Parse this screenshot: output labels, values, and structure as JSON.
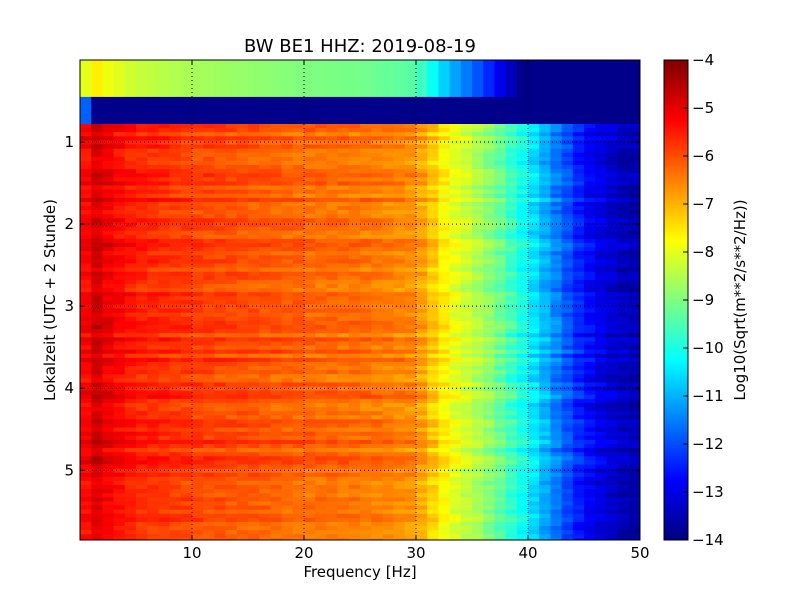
{
  "chart_data": {
    "type": "heatmap",
    "title": "BW BE1 HHZ: 2019-08-19",
    "xlabel": "Frequency [Hz]",
    "ylabel": "Lokalzeit (UTC + 2 Stunde)",
    "xlim": [
      0,
      50
    ],
    "ylim": [
      5.85,
      0.0
    ],
    "x_ticks": [
      10,
      20,
      30,
      40,
      50
    ],
    "y_ticks": [
      1,
      2,
      3,
      4,
      5
    ],
    "grid": true,
    "colormap": "jet",
    "colorbar": {
      "label": "Log10(Sqrt(m**2/s**2/Hz))",
      "range": [
        -14,
        -4
      ],
      "ticks": [
        -4,
        -5,
        -6,
        -7,
        -8,
        -9,
        -10,
        -11,
        -12,
        -13,
        -14
      ]
    },
    "data_profile": {
      "frequency_hz": [
        0,
        0.5,
        1,
        2,
        5,
        10,
        15,
        20,
        25,
        30,
        33,
        36,
        40,
        42,
        45,
        48,
        50
      ],
      "log10_amplitude": [
        -7.5,
        -5.2,
        -4.6,
        -5.0,
        -5.5,
        -5.8,
        -6.0,
        -6.2,
        -6.3,
        -6.6,
        -7.8,
        -8.6,
        -10.2,
        -11.2,
        -12.6,
        -13.3,
        -13.5
      ]
    },
    "segments": [
      {
        "time_start": 0.0,
        "time_end": 0.45,
        "description_level": "low"
      },
      {
        "time_start": 0.45,
        "time_end": 0.78,
        "description_level": "gap"
      },
      {
        "time_start": 0.78,
        "time_end": 5.85,
        "description_level": "normal"
      }
    ]
  },
  "colors": {
    "jet_dark_blue": "#00007f",
    "jet_blue": "#0000ff",
    "jet_cyan": "#00ffff",
    "jet_yellow": "#ffff00",
    "jet_red": "#ff0000",
    "jet_dark_red": "#7f0000"
  }
}
